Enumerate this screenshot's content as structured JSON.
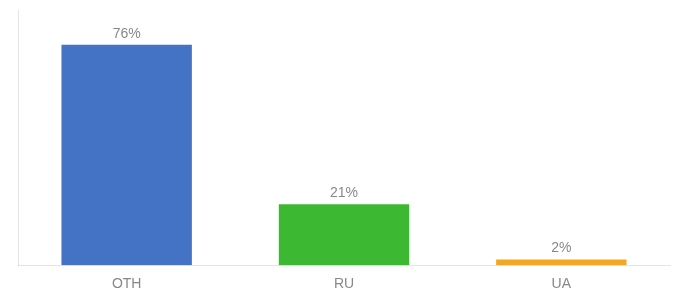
{
  "chart_data": {
    "type": "bar",
    "categories": [
      "OTH",
      "RU",
      "UA"
    ],
    "values": [
      76,
      21,
      2
    ],
    "value_labels": [
      "76%",
      "21%",
      "2%"
    ],
    "data_labels": true,
    "colors": [
      "#4472c4",
      "#3cb832",
      "#f5a623"
    ],
    "ylim": [
      0,
      88
    ],
    "grid": false,
    "tick_labels": "x"
  }
}
